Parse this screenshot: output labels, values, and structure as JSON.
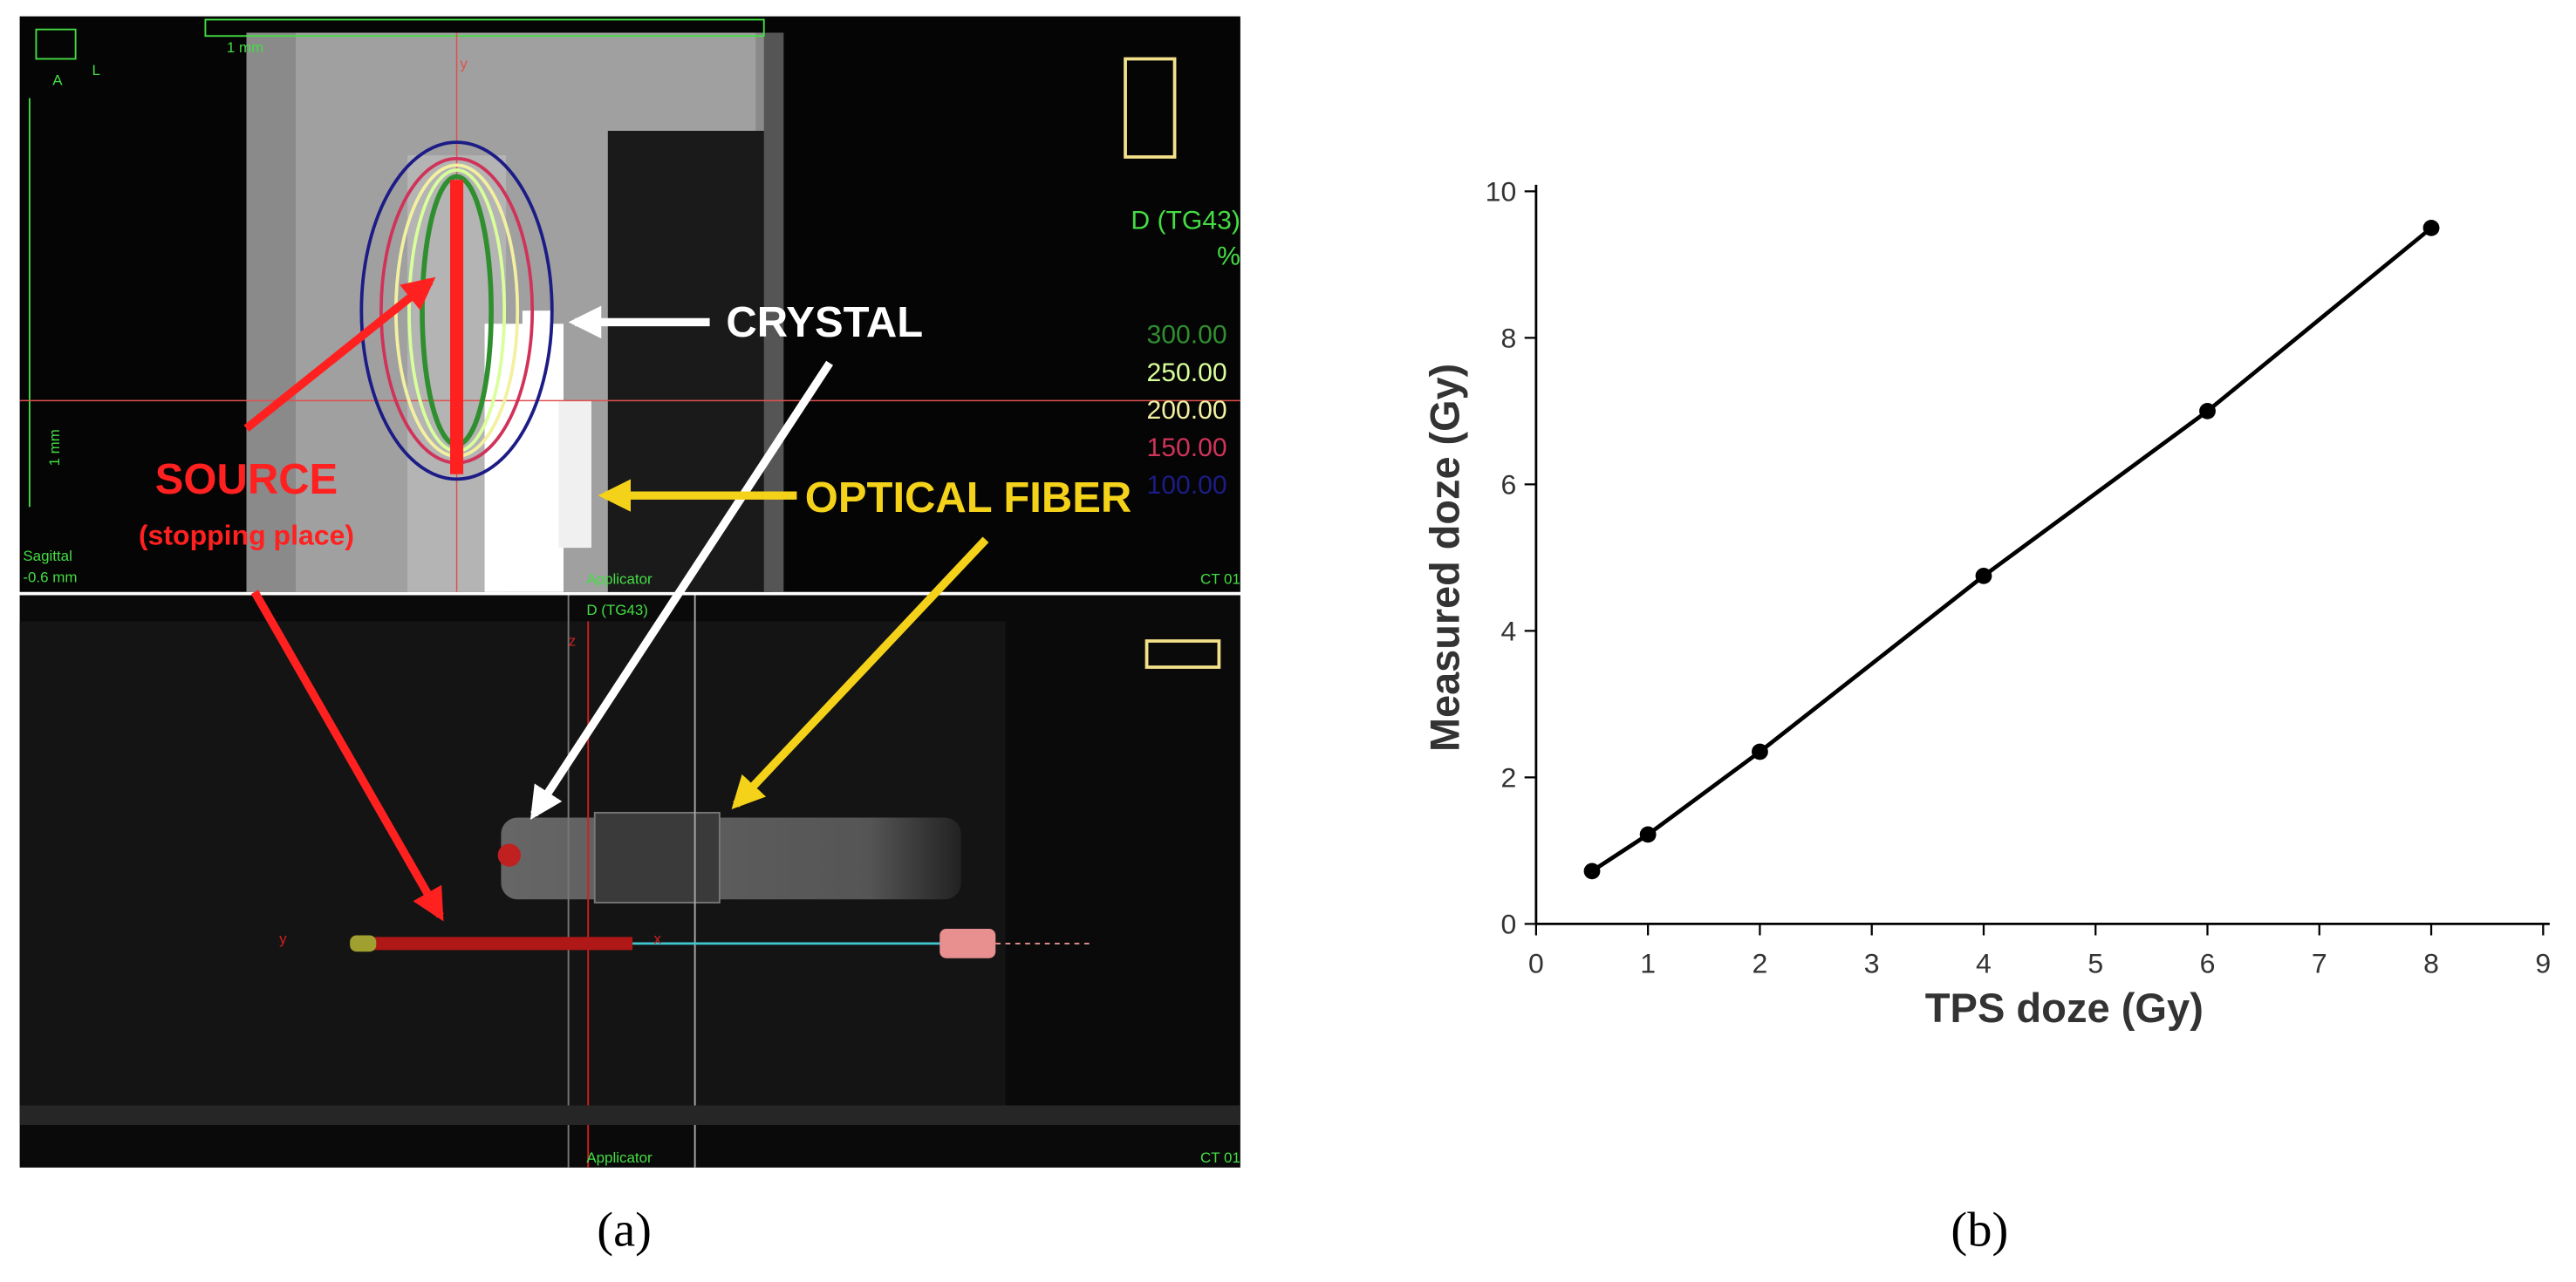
{
  "panel_a": {
    "orientation": [
      "A",
      "L"
    ],
    "scale_top": "1 mm",
    "scale_side": "1 mm",
    "axis_y": "y",
    "dose_title": "D (TG43)",
    "dose_unit": "%",
    "isodose_levels": [
      {
        "label": "300.00",
        "color": "#2f8f2f"
      },
      {
        "label": "250.00",
        "color": "#d8ff9a"
      },
      {
        "label": "200.00",
        "color": "#f3f0a0"
      },
      {
        "label": "150.00",
        "color": "#d0335a"
      },
      {
        "label": "100.00",
        "color": "#1c1c86"
      }
    ],
    "view_top": {
      "name": "Sagittal",
      "offset": "-0.6 mm",
      "applicator": "Applicator",
      "series": "CT 01"
    },
    "view_bottom": {
      "dose": "D (TG43)",
      "axis_z": "z",
      "axis_y": "y",
      "axis_x": "x",
      "applicator": "Applicator",
      "series": "CT 01"
    },
    "annotations": {
      "crystal": "CRYSTAL",
      "source": "SOURCE",
      "source_note": "(stopping place)",
      "fiber": "OPTICAL FIBER"
    },
    "caption": "(a)"
  },
  "chart_data": {
    "type": "line",
    "xlabel": "TPS doze (Gy)",
    "ylabel": "Measured doze (Gy)",
    "x": [
      0.5,
      1,
      2,
      4,
      6,
      8
    ],
    "series": [
      {
        "color": "#000000",
        "values": [
          0.72,
          1.22,
          2.35,
          4.75,
          7.0,
          9.5
        ]
      }
    ],
    "xlim": [
      0,
      9
    ],
    "ylim": [
      0,
      10
    ],
    "xticks": [
      0,
      1,
      2,
      3,
      4,
      5,
      6,
      7,
      8,
      9
    ],
    "yticks": [
      0,
      2,
      4,
      6,
      8,
      10
    ],
    "grid": false
  },
  "caption_b": "(b)"
}
